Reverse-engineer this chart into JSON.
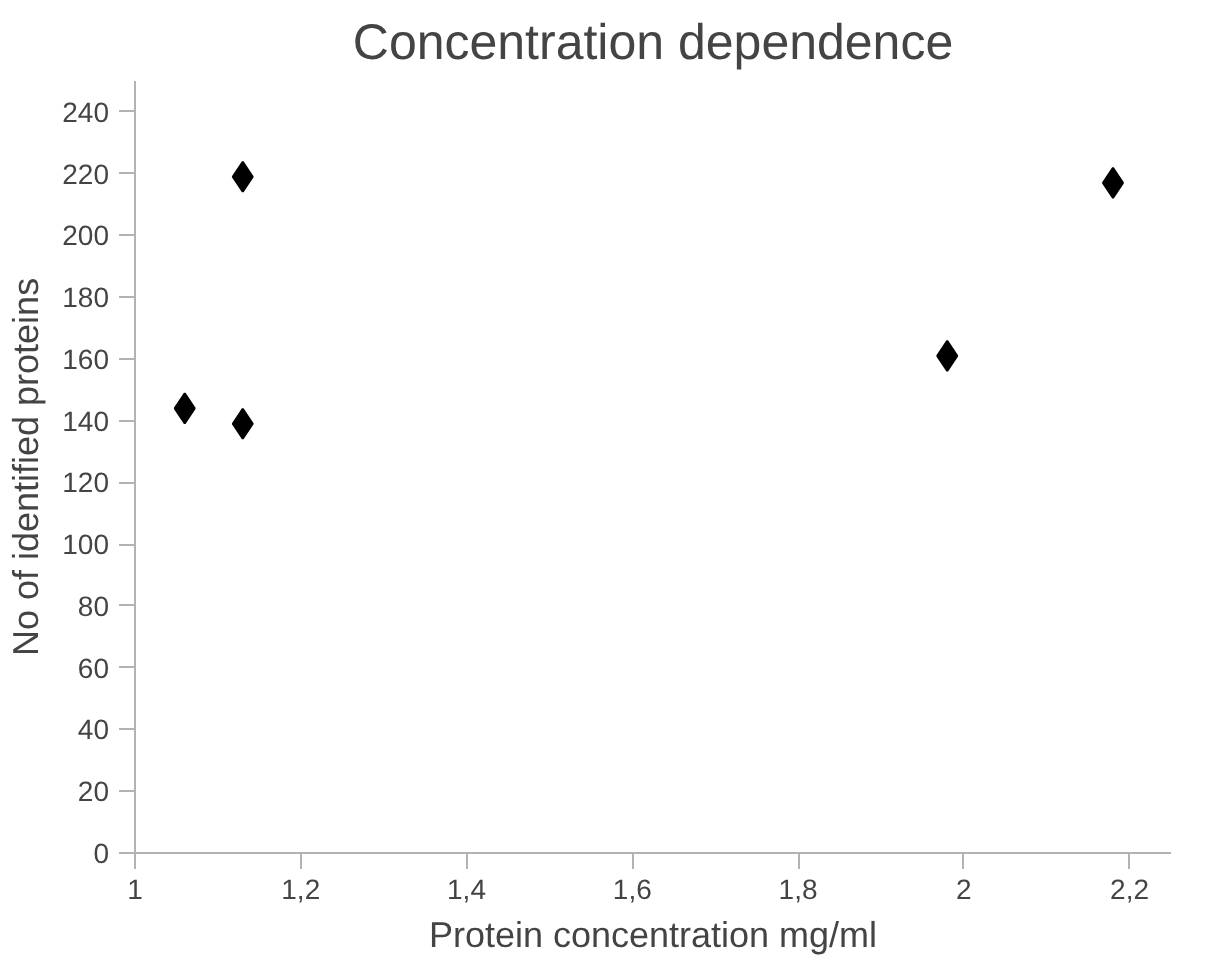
{
  "chart_data": {
    "type": "scatter",
    "title": "Concentration dependence",
    "xlabel": "Protein concentration mg/ml",
    "ylabel": "No of identified proteins",
    "x": [
      1.06,
      1.13,
      1.13,
      1.98,
      2.18
    ],
    "values": [
      144,
      219,
      139,
      161,
      217
    ],
    "color": "#000000",
    "marker": "diamond",
    "grid": false,
    "xlim": [
      1,
      2.25
    ],
    "xticks": [
      1,
      {
        "value": 1.2,
        "label": "1,2"
      },
      {
        "value": 1.4,
        "label": "1,4"
      },
      {
        "value": 1.6,
        "label": "1,6"
      },
      {
        "value": 1.8,
        "label": "1,8"
      },
      2,
      {
        "value": 2.2,
        "label": "2,2"
      }
    ],
    "ylim": [
      0,
      250
    ],
    "yticks": [
      0,
      20,
      40,
      60,
      80,
      100,
      120,
      140,
      160,
      180,
      200,
      220,
      240
    ]
  }
}
